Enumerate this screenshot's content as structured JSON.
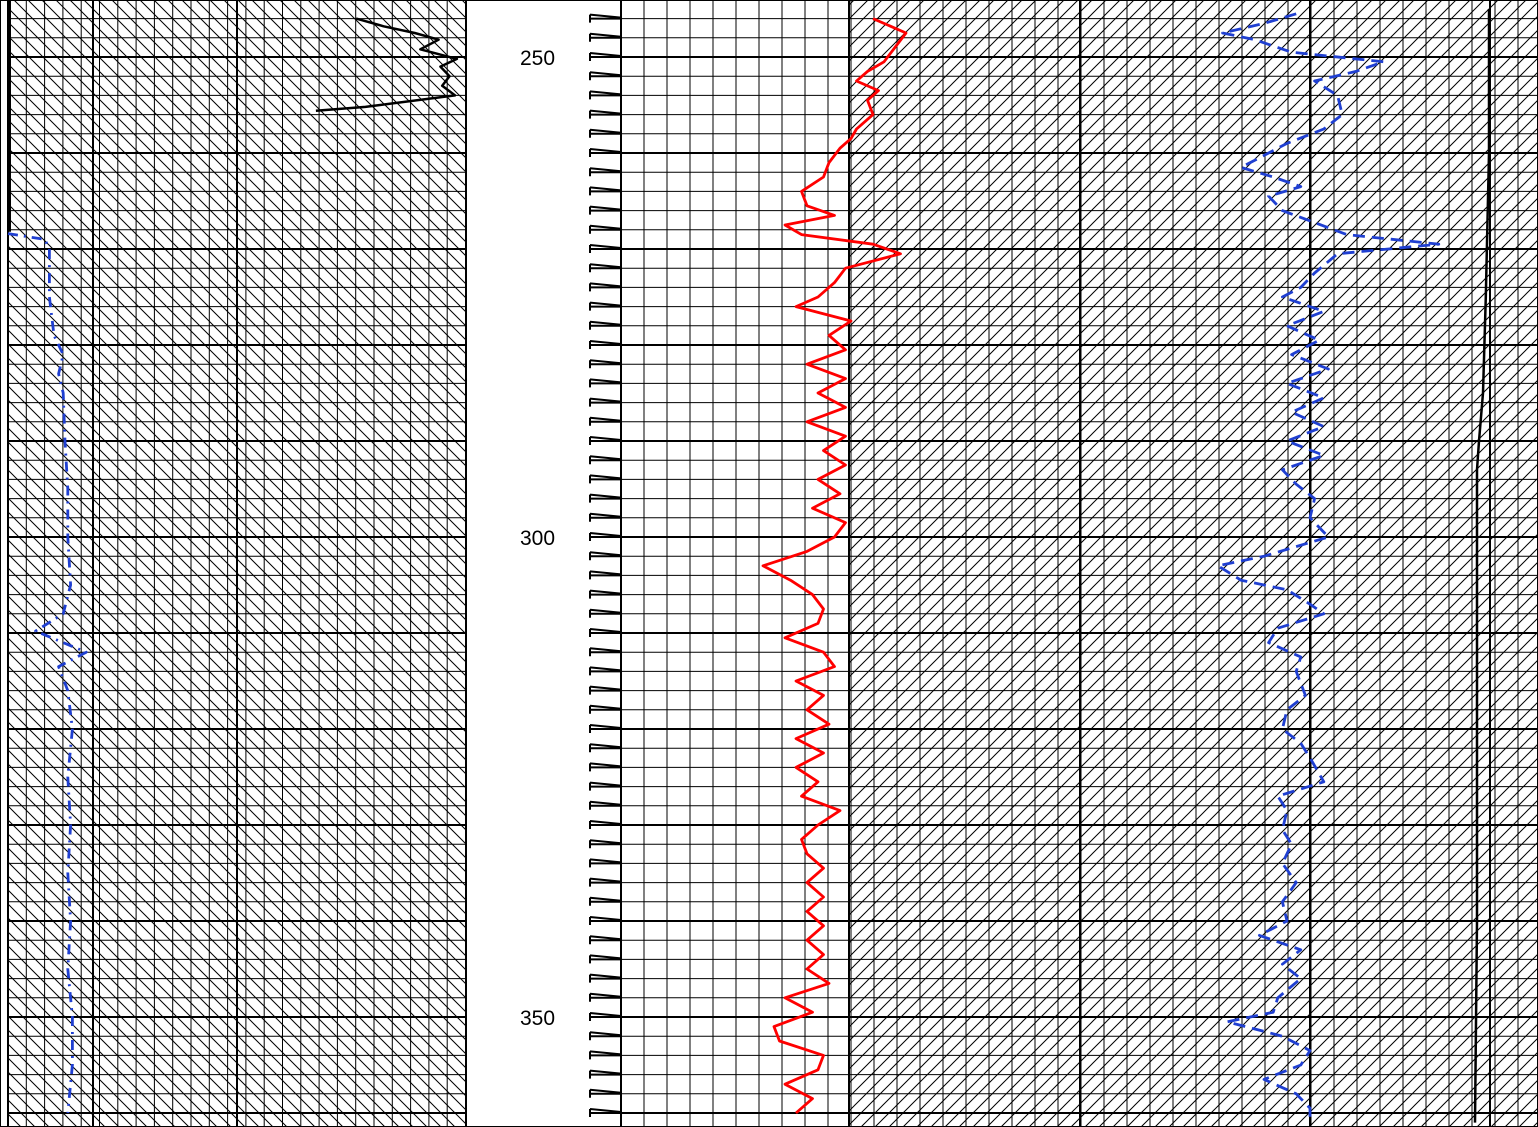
{
  "chart_data": {
    "type": "line",
    "title": "",
    "xlabel": "",
    "ylabel": "",
    "depth_axis": {
      "range": [
        245,
        361
      ],
      "labeled_ticks": [
        "250",
        "300",
        "350"
      ],
      "minor_step": 5,
      "major_step": 10,
      "direction": "down"
    },
    "grid": "on",
    "legend": "none",
    "tracks": [
      {
        "id": "track-1",
        "hatch": "backslash",
        "series": [
          {
            "color": "#000000",
            "style": "solid",
            "points": [
              [
                246.0,
                6.0
              ],
              [
                246.8,
                4.5
              ],
              [
                247.5,
                2.8
              ],
              [
                248.2,
                1.5
              ],
              [
                249.2,
                2.5
              ],
              [
                250.2,
                0.5
              ],
              [
                251.0,
                1.4
              ],
              [
                252.0,
                0.9
              ],
              [
                253.0,
                1.3
              ],
              [
                254.0,
                0.6
              ],
              [
                255.2,
                5.5
              ],
              [
                255.6,
                8.2
              ]
            ]
          },
          {
            "color": "#1f3fd1",
            "style": "dashdot",
            "points": [
              [
                268.4,
                0.0
              ],
              [
                269.0,
                0.4
              ],
              [
                270,
                0.45
              ],
              [
                275,
                0.45
              ],
              [
                279,
                0.5
              ],
              [
                281,
                0.6
              ],
              [
                283,
                0.55
              ],
              [
                285,
                0.6
              ],
              [
                290,
                0.62
              ],
              [
                295,
                0.65
              ],
              [
                300,
                0.65
              ],
              [
                305,
                0.68
              ],
              [
                308,
                0.6
              ],
              [
                309.8,
                0.3
              ],
              [
                311.0,
                0.6
              ],
              [
                312.0,
                0.85
              ],
              [
                313.5,
                0.55
              ],
              [
                316,
                0.65
              ],
              [
                320,
                0.7
              ],
              [
                325,
                0.65
              ],
              [
                330,
                0.68
              ],
              [
                335,
                0.65
              ],
              [
                340,
                0.68
              ],
              [
                345,
                0.65
              ],
              [
                350,
                0.7
              ],
              [
                355,
                0.7
              ],
              [
                360,
                0.65
              ]
            ]
          }
        ]
      },
      {
        "id": "track-2",
        "hatch": "slash",
        "series": [
          {
            "color": "#ff0000",
            "style": "solid",
            "points": [
              [
                246,
                0.3
              ],
              [
                247.5,
                0.6
              ],
              [
                249,
                0.5
              ],
              [
                250.5,
                0.4
              ],
              [
                251.5,
                0.25
              ],
              [
                252.5,
                0.15
              ],
              [
                253.5,
                0.35
              ],
              [
                254.5,
                0.25
              ],
              [
                256,
                0.3
              ],
              [
                257.5,
                0.15
              ],
              [
                258.5,
                0.1
              ],
              [
                259.5,
                0.0
              ],
              [
                261,
                -0.1
              ],
              [
                262.5,
                -0.15
              ],
              [
                264,
                -0.35
              ],
              [
                265.5,
                -0.3
              ],
              [
                266.5,
                -0.05
              ],
              [
                267.5,
                -0.5
              ],
              [
                268.5,
                -0.35
              ],
              [
                269.5,
                0.3
              ],
              [
                270.5,
                0.55
              ],
              [
                272,
                0.05
              ],
              [
                273.5,
                -0.05
              ],
              [
                275,
                -0.2
              ],
              [
                276,
                -0.4
              ],
              [
                277.5,
                0.1
              ],
              [
                279,
                -0.1
              ],
              [
                280.5,
                0.05
              ],
              [
                282,
                -0.3
              ],
              [
                283.5,
                0.05
              ],
              [
                285,
                -0.2
              ],
              [
                286.5,
                0.05
              ],
              [
                288,
                -0.3
              ],
              [
                289.5,
                0.05
              ],
              [
                291,
                -0.15
              ],
              [
                292.5,
                0.05
              ],
              [
                294,
                -0.2
              ],
              [
                295.5,
                0.0
              ],
              [
                297,
                -0.25
              ],
              [
                298.5,
                0.05
              ],
              [
                300,
                -0.05
              ],
              [
                301.5,
                -0.3
              ],
              [
                303,
                -0.7
              ],
              [
                304.5,
                -0.45
              ],
              [
                306,
                -0.25
              ],
              [
                307.5,
                -0.15
              ],
              [
                309,
                -0.2
              ],
              [
                310.5,
                -0.5
              ],
              [
                312,
                -0.15
              ],
              [
                313.5,
                -0.05
              ],
              [
                315,
                -0.4
              ],
              [
                316.5,
                -0.15
              ],
              [
                318,
                -0.3
              ],
              [
                319.5,
                -0.1
              ],
              [
                321,
                -0.4
              ],
              [
                322.5,
                -0.15
              ],
              [
                324,
                -0.4
              ],
              [
                325.5,
                -0.2
              ],
              [
                327,
                -0.35
              ],
              [
                328.5,
                0.0
              ],
              [
                330,
                -0.2
              ],
              [
                331.5,
                -0.35
              ],
              [
                333,
                -0.3
              ],
              [
                334.5,
                -0.15
              ],
              [
                336,
                -0.3
              ],
              [
                337.5,
                -0.15
              ],
              [
                339,
                -0.3
              ],
              [
                340.5,
                -0.15
              ],
              [
                342,
                -0.3
              ],
              [
                343.5,
                -0.15
              ],
              [
                345,
                -0.3
              ],
              [
                346.5,
                -0.1
              ],
              [
                348,
                -0.5
              ],
              [
                349.5,
                -0.25
              ],
              [
                351,
                -0.6
              ],
              [
                352.5,
                -0.55
              ],
              [
                354,
                -0.15
              ],
              [
                355.5,
                -0.2
              ],
              [
                357,
                -0.5
              ],
              [
                358.5,
                -0.25
              ],
              [
                360,
                -0.4
              ]
            ]
          },
          {
            "color": "#1f3fd1",
            "style": "dashed",
            "points": [
              [
                245.5,
                -0.3
              ],
              [
                246.5,
                -1.0
              ],
              [
                247.5,
                -1.9
              ],
              [
                248.2,
                -1.2
              ],
              [
                249.5,
                -0.4
              ],
              [
                250.5,
                1.6
              ],
              [
                251.5,
                1.0
              ],
              [
                252.5,
                0.1
              ],
              [
                254,
                0.6
              ],
              [
                256,
                0.7
              ],
              [
                257.5,
                0.3
              ],
              [
                259,
                -0.5
              ],
              [
                260.5,
                -1.1
              ],
              [
                261.5,
                -1.5
              ],
              [
                262.5,
                -0.8
              ],
              [
                263.5,
                -0.2
              ],
              [
                264.5,
                -0.9
              ],
              [
                266,
                -0.6
              ],
              [
                268.5,
                0.8
              ],
              [
                269.5,
                2.8
              ],
              [
                270.5,
                0.6
              ],
              [
                272.5,
                0.1
              ],
              [
                274,
                -0.2
              ],
              [
                275,
                -0.6
              ],
              [
                276.5,
                0.3
              ],
              [
                278,
                -0.5
              ],
              [
                279.5,
                0.2
              ],
              [
                281,
                -0.4
              ],
              [
                282.5,
                0.4
              ],
              [
                284,
                -0.5
              ],
              [
                285.5,
                0.3
              ],
              [
                287,
                -0.4
              ],
              [
                288.5,
                0.3
              ],
              [
                290,
                -0.5
              ],
              [
                291.5,
                0.3
              ],
              [
                293,
                -0.6
              ],
              [
                294.5,
                -0.3
              ],
              [
                296,
                0.1
              ],
              [
                298,
                0.0
              ],
              [
                300,
                0.4
              ],
              [
                302,
                -1.0
              ],
              [
                303,
                -2.0
              ],
              [
                304.5,
                -1.5
              ],
              [
                305.5,
                -0.5
              ],
              [
                307,
                0.0
              ],
              [
                308,
                0.3
              ],
              [
                309.5,
                -0.7
              ],
              [
                311,
                -0.9
              ],
              [
                312.5,
                -0.2
              ],
              [
                314,
                -0.3
              ],
              [
                316.5,
                -0.1
              ],
              [
                318,
                -0.5
              ],
              [
                320,
                -0.6
              ],
              [
                321.5,
                -0.2
              ],
              [
                323,
                0.0
              ],
              [
                325.5,
                0.3
              ],
              [
                327,
                -0.7
              ],
              [
                328.5,
                -0.5
              ],
              [
                330.5,
                -0.6
              ],
              [
                332,
                -0.4
              ],
              [
                334,
                -0.6
              ],
              [
                336,
                -0.3
              ],
              [
                338,
                -0.6
              ],
              [
                340,
                -0.5
              ],
              [
                341.5,
                -1.1
              ],
              [
                343,
                -0.2
              ],
              [
                344.5,
                -0.6
              ],
              [
                346,
                -0.2
              ],
              [
                348,
                -0.7
              ],
              [
                349.5,
                -0.8
              ],
              [
                350.5,
                -1.8
              ],
              [
                352,
                -0.6
              ],
              [
                353.5,
                0.0
              ],
              [
                355,
                -0.2
              ],
              [
                356.5,
                -1.0
              ],
              [
                358,
                -0.3
              ],
              [
                359.5,
                0.0
              ],
              [
                360.8,
                0.0
              ]
            ]
          },
          {
            "color": "#000000",
            "style": "solid",
            "points": [
              [
                245,
                0.1
              ],
              [
                260,
                0.1
              ],
              [
                275,
                0.02
              ],
              [
                285,
                -0.05
              ],
              [
                290,
                -0.15
              ],
              [
                293,
                -0.2
              ],
              [
                300,
                -0.2
              ],
              [
                320,
                -0.2
              ],
              [
                340,
                -0.2
              ],
              [
                361,
                -0.25
              ]
            ]
          }
        ]
      }
    ]
  }
}
